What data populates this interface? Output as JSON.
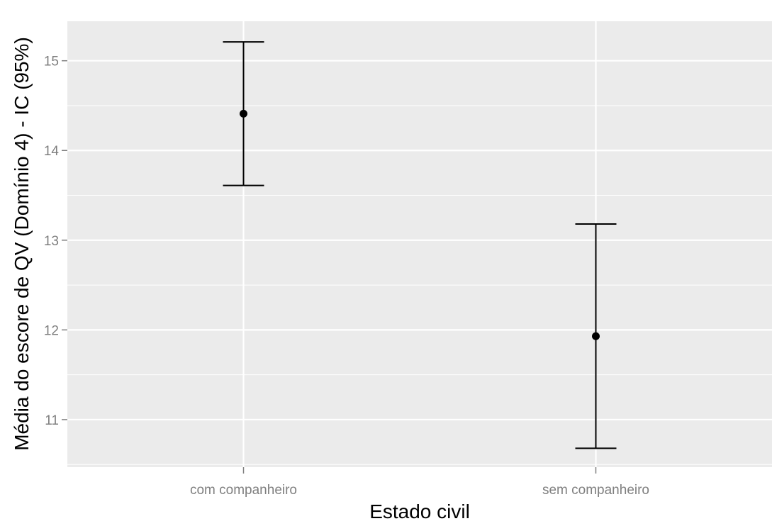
{
  "chart_data": {
    "type": "errorbar",
    "xlabel": "Estado civil",
    "ylabel": "Média do escore de QV (Domínio 4) - IC (95%)",
    "categories": [
      "com companheiro",
      "sem companheiro"
    ],
    "mean": [
      14.41,
      11.93
    ],
    "lower": [
      13.61,
      10.68
    ],
    "upper": [
      15.21,
      13.18
    ],
    "ylim": [
      10.47,
      15.44
    ],
    "yticks": [
      11,
      12,
      13,
      14,
      15
    ],
    "ytick_labels": [
      "11",
      "12",
      "13",
      "14",
      "15"
    ],
    "grid": true,
    "panel_background": "#ebebeb",
    "grid_color": "#ffffff",
    "mark_color": "#000000"
  }
}
